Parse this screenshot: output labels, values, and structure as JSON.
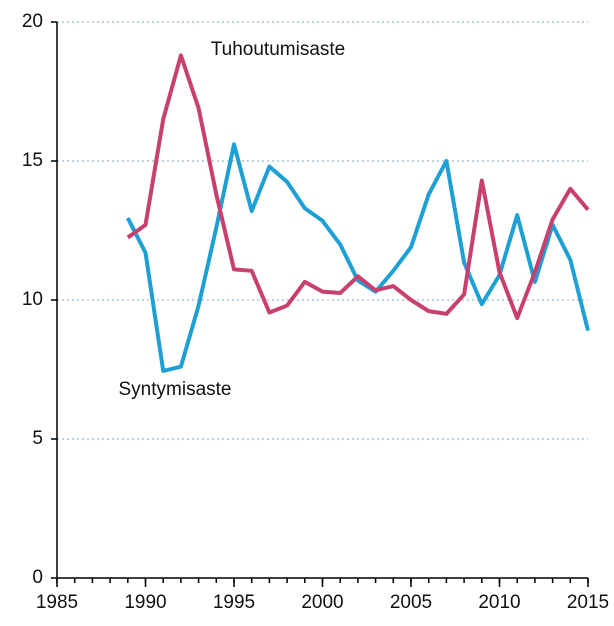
{
  "chart_data": {
    "type": "line",
    "x": [
      1989,
      1990,
      1991,
      1992,
      1993,
      1994,
      1995,
      1996,
      1997,
      1998,
      1999,
      2000,
      2001,
      2002,
      2003,
      2004,
      2005,
      2006,
      2007,
      2008,
      2009,
      2010,
      2011,
      2012,
      2013,
      2014,
      2015
    ],
    "series": [
      {
        "name": "Syntymisaste",
        "color": "#1fa0d5",
        "values": [
          12.95,
          11.7,
          7.45,
          7.6,
          9.8,
          12.6,
          15.6,
          13.2,
          14.8,
          14.25,
          13.3,
          12.85,
          12.0,
          10.7,
          10.3,
          11.05,
          11.9,
          13.8,
          15.0,
          11.35,
          9.85,
          10.9,
          13.05,
          10.65,
          12.7,
          11.45,
          8.9
        ]
      },
      {
        "name": "Tuhoutumisaste",
        "color": "#c8406e",
        "values": [
          12.25,
          12.7,
          16.5,
          18.8,
          16.9,
          13.8,
          11.1,
          11.05,
          9.55,
          9.8,
          10.65,
          10.3,
          10.25,
          10.85,
          10.35,
          10.5,
          10.0,
          9.6,
          9.5,
          10.2,
          14.3,
          11.0,
          9.35,
          11.0,
          12.9,
          14.0,
          13.25
        ]
      }
    ],
    "xlim": [
      1985,
      2015
    ],
    "xticks": [
      1985,
      1990,
      1995,
      2000,
      2005,
      2010,
      2015
    ],
    "ylim": [
      0,
      20
    ],
    "yticks": [
      0,
      5,
      10,
      15,
      20
    ],
    "grid": true
  }
}
